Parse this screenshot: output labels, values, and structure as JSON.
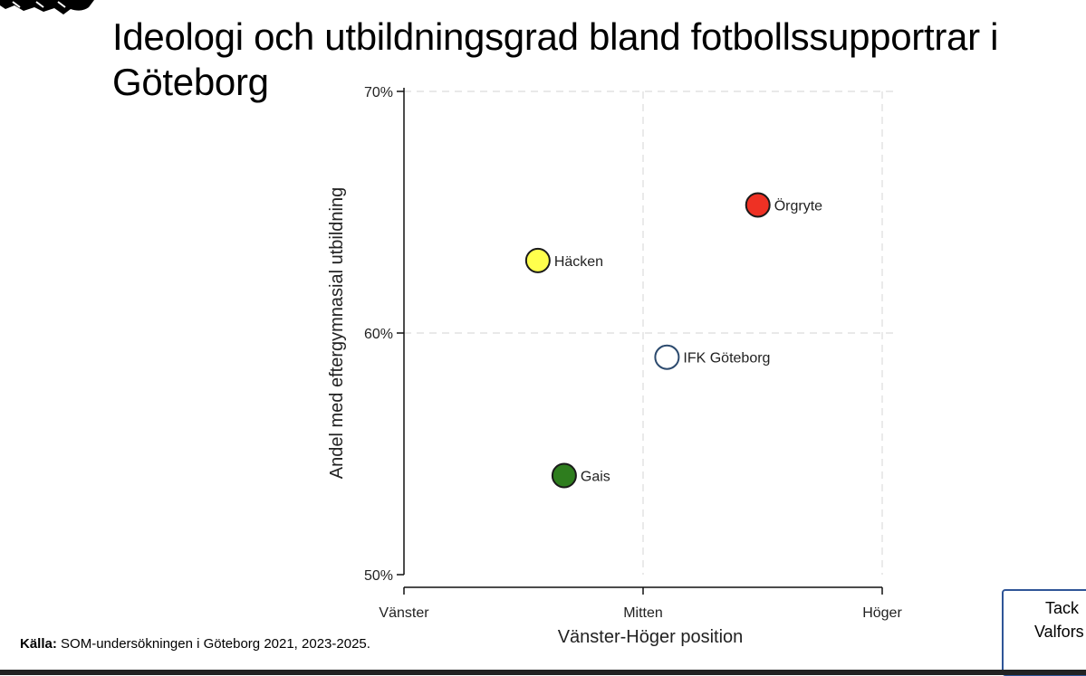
{
  "slide": {
    "title": "Ideologi och utbildningsgrad bland fotbollssupportrar i Göteborg",
    "source_label": "Källa:",
    "source_text": " SOM-undersökningen i Göteborg 2021, 2023-2025.",
    "thanks_line1": "Tack",
    "thanks_line2": "Valfors"
  },
  "colors": {
    "hacken": "#ffff4d",
    "orgryte": "#ee3124",
    "gais": "#2e7d1e",
    "ifk": "#ffffff",
    "ifk_stroke": "#2c4a6e",
    "box_border": "#2f5597"
  },
  "chart_data": {
    "type": "scatter",
    "title": "",
    "xlabel": "Vänster-Höger position",
    "ylabel": "Andel med eftergymnasial utbildning",
    "x_ticks": [
      "Vänster",
      "Mitten",
      "Höger"
    ],
    "y_ticks": [
      "50%",
      "60%",
      "70%"
    ],
    "xlim": [
      0,
      2
    ],
    "ylim": [
      50,
      70
    ],
    "grid": true,
    "points": [
      {
        "label": "Häcken",
        "x": 0.56,
        "y": 63.0,
        "color_key": "hacken"
      },
      {
        "label": "Örgryte",
        "x": 1.48,
        "y": 65.3,
        "color_key": "orgryte"
      },
      {
        "label": "IFK Göteborg",
        "x": 1.1,
        "y": 59.0,
        "color_key": "ifk"
      },
      {
        "label": "Gais",
        "x": 0.67,
        "y": 54.1,
        "color_key": "gais"
      }
    ]
  }
}
